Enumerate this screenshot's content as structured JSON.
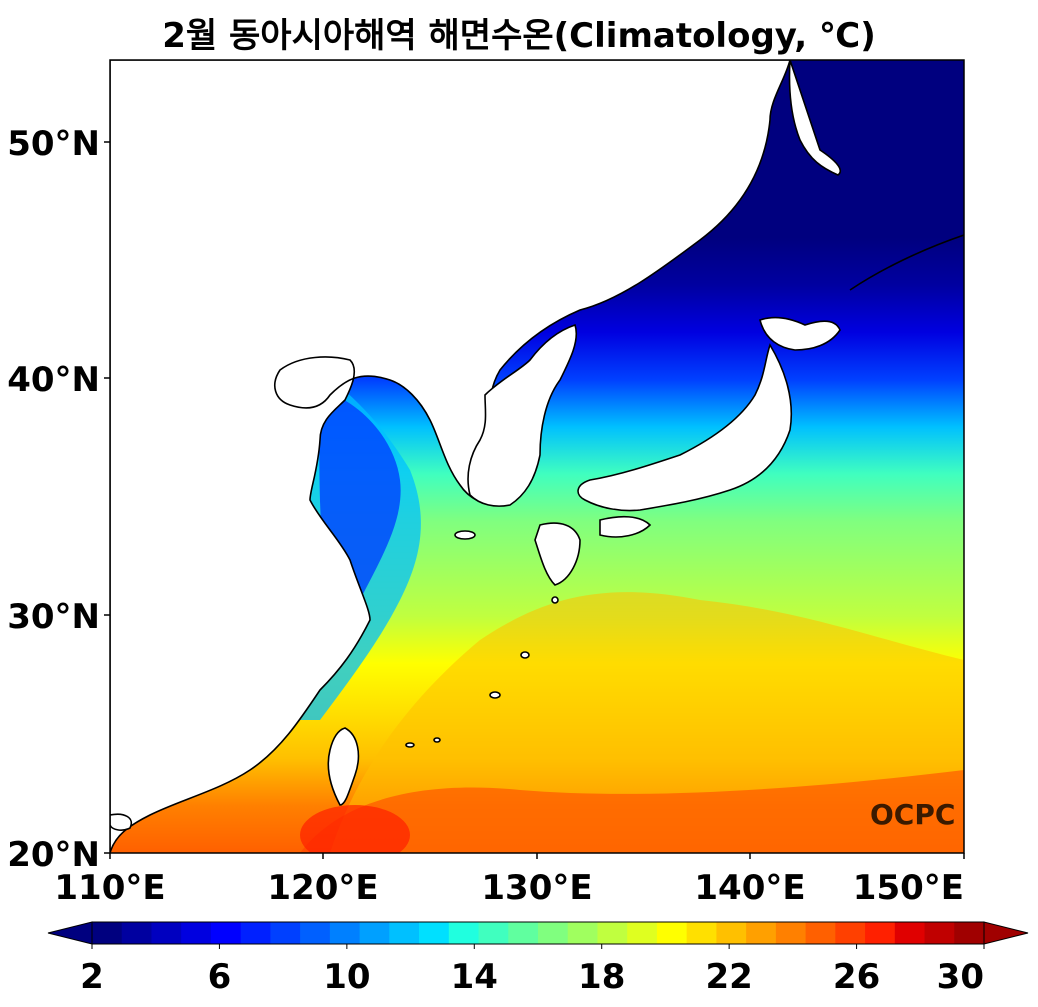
{
  "title": "2월 동아시아해역 해면수온(Climatology, ℃)",
  "watermark": "OCPC",
  "lat_ticks": [
    "20°N",
    "30°N",
    "40°N",
    "50°N"
  ],
  "lon_ticks": [
    "110°E",
    "120°E",
    "130°E",
    "140°E",
    "150°E"
  ],
  "map_extent": {
    "lon": [
      110,
      150
    ],
    "lat": [
      20,
      53.5
    ]
  },
  "colorbar": {
    "min": 2,
    "max": 30,
    "step": 1,
    "tick_labels": [
      "2",
      "6",
      "10",
      "14",
      "18",
      "22",
      "26",
      "30"
    ],
    "colors": [
      "#00007f",
      "#0000a0",
      "#0000c0",
      "#0000e0",
      "#0000ff",
      "#0020ff",
      "#0040ff",
      "#0060ff",
      "#0080ff",
      "#00a0ff",
      "#00c0ff",
      "#00e0ff",
      "#20ffdf",
      "#40ffbf",
      "#60ff9f",
      "#80ff7f",
      "#a0ff5f",
      "#c0ff3f",
      "#dfff20",
      "#ffff00",
      "#ffe000",
      "#ffc000",
      "#ffa000",
      "#ff8000",
      "#ff6000",
      "#ff4000",
      "#ff2000",
      "#e00000",
      "#c00000",
      "#a00000"
    ],
    "extend": "both"
  },
  "sst_by_latitude": [
    {
      "lat": 20,
      "sst": 26
    },
    {
      "lat": 22,
      "sst": 25
    },
    {
      "lat": 24,
      "sst": 23.5
    },
    {
      "lat": 26,
      "sst": 22
    },
    {
      "lat": 28,
      "sst": 21
    },
    {
      "lat": 30,
      "sst": 19.5
    },
    {
      "lat": 32,
      "sst": 18
    },
    {
      "lat": 34,
      "sst": 17
    },
    {
      "lat": 36,
      "sst": 15
    },
    {
      "lat": 38,
      "sst": 12
    },
    {
      "lat": 40,
      "sst": 8
    },
    {
      "lat": 42,
      "sst": 5
    },
    {
      "lat": 44,
      "sst": 3
    },
    {
      "lat": 46,
      "sst": 2
    },
    {
      "lat": 53.5,
      "sst": 1
    }
  ]
}
